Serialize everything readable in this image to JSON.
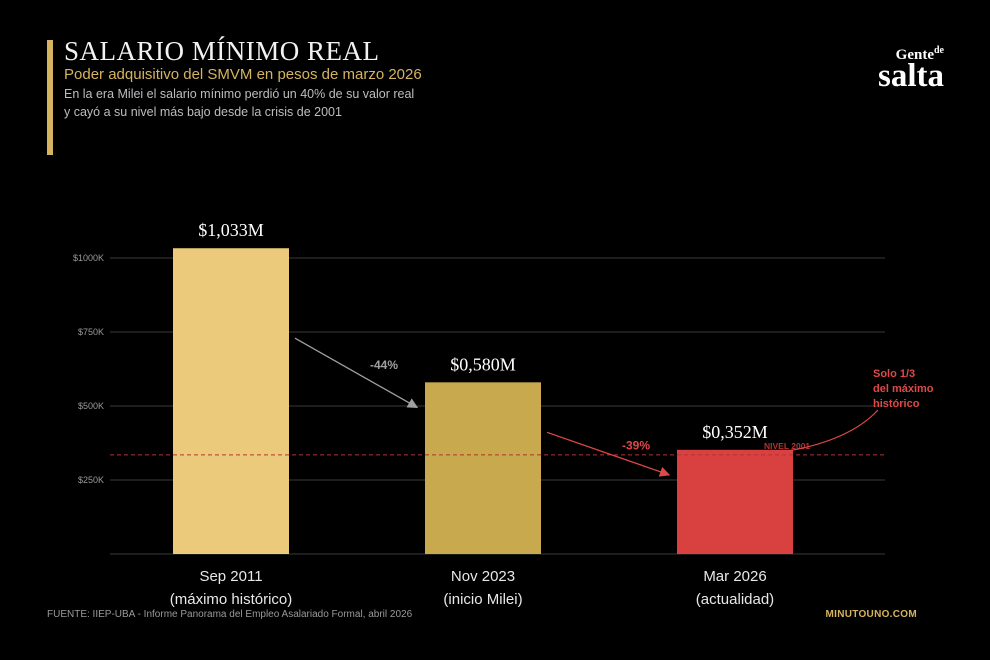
{
  "header": {
    "title": "SALARIO MÍNIMO REAL",
    "subtitle": "Poder adquisitivo del SMVM en pesos de marzo 2026",
    "description_line1": "En la era Milei el salario mínimo perdió un 40% de su valor real",
    "description_line2": "y cayó a su nivel más bajo desde la crisis de 2001"
  },
  "logo": {
    "top": "Gente",
    "top_sup": "de",
    "main": "salta"
  },
  "footer": {
    "source": "FUENTE: IIEP-UBA - Informe Panorama del Empleo Asalariado Formal, abril 2026",
    "credit": "MINUTOUNO.COM"
  },
  "colors": {
    "accent": "#d4b45e",
    "bar1": "#ecca7c",
    "bar2": "#c9a94d",
    "bar3": "#d94040",
    "grid": "#3a3a3a",
    "reference_line": "#b23333",
    "arrow_gray": "#a0a0a0",
    "alert_red": "#e04848"
  },
  "chart_data": {
    "type": "bar",
    "categories": [
      "Sep 2011",
      "Nov 2023",
      "Mar 2026"
    ],
    "category_sublabels": [
      "(máximo histórico)",
      "(inicio Milei)",
      "(actualidad)"
    ],
    "values": [
      1033,
      580,
      352
    ],
    "value_labels": [
      "$1,033M",
      "$0,580M",
      "$0,352M"
    ],
    "ylim": [
      0,
      1000
    ],
    "yticks": [
      250,
      500,
      750,
      1000
    ],
    "ytick_labels": [
      "$250K",
      "$500K",
      "$750K",
      "$1000K"
    ],
    "grid": true,
    "reference_line": {
      "value": 335,
      "label": "NIVEL 2001"
    },
    "changes": [
      {
        "from": 0,
        "to": 1,
        "label": "-44%"
      },
      {
        "from": 1,
        "to": 2,
        "label": "-39%"
      }
    ],
    "annotation": {
      "lines": [
        "Solo 1/3",
        "del máximo",
        "histórico"
      ]
    }
  }
}
